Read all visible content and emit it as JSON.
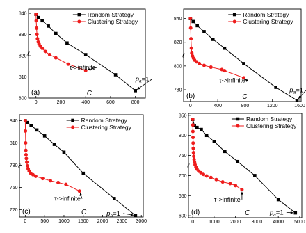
{
  "chart_data": [
    {
      "type": "line",
      "panel_label": "(a)",
      "xlabel": "C",
      "ylabel": "ℓ",
      "xlim": [
        -60,
        880
      ],
      "ylim": [
        800,
        842
      ],
      "xticks": [
        0,
        200,
        400,
        600,
        800
      ],
      "yticks": [
        800,
        810,
        820,
        830,
        840
      ],
      "series": [
        {
          "name": "Random Strategy",
          "color": "#000000",
          "marker": "square",
          "x": [
            0,
            20,
            50,
            100,
            160,
            250,
            400,
            640,
            800
          ],
          "y": [
            839.5,
            838,
            836.5,
            834,
            830.5,
            826,
            820.5,
            811,
            803.5
          ]
        },
        {
          "name": "Clustering Strategy",
          "color": "#ee1c1c",
          "marker": "circle",
          "x": [
            0,
            2,
            5,
            8,
            12,
            18,
            25,
            35,
            50,
            75,
            110,
            160,
            260,
            400
          ],
          "y": [
            839.5,
            836.5,
            833,
            830,
            828,
            826.5,
            825.5,
            824.5,
            823.5,
            822,
            820.5,
            819,
            816,
            813
          ]
        }
      ],
      "annotations": [
        {
          "text": "τ->infinite",
          "x": 270,
          "y": 813.5,
          "target_x": 400,
          "target_y": 813
        },
        {
          "text": "p",
          "sub": "a",
          "suffix": "=1",
          "x": 800,
          "y": 808,
          "target_x": 800,
          "target_y": 803.5
        }
      ]
    },
    {
      "type": "line",
      "panel_label": "(b)",
      "xlabel": "C",
      "ylabel": "ℓ",
      "xlim": [
        -100,
        1620
      ],
      "ylim": [
        770,
        848
      ],
      "xticks": [
        0,
        400,
        800,
        1200,
        1600
      ],
      "yticks": [
        780,
        800,
        820,
        840
      ],
      "series": [
        {
          "name": "Random Strategy",
          "color": "#000000",
          "marker": "square",
          "x": [
            0,
            40,
            100,
            200,
            330,
            500,
            780,
            1250,
            1560
          ],
          "y": [
            840,
            837.5,
            834,
            829,
            822.5,
            815,
            802,
            782,
            771
          ]
        },
        {
          "name": "Clustering Strategy",
          "color": "#ee1c1c",
          "marker": "circle",
          "x": [
            0,
            4,
            8,
            14,
            20,
            30,
            45,
            60,
            90,
            130,
            200,
            300,
            460,
            500,
            780
          ],
          "y": [
            840,
            832,
            823,
            815,
            811,
            808.5,
            806.5,
            805,
            803.5,
            802,
            800.5,
            799,
            797,
            796,
            790
          ]
        }
      ],
      "annotations": [
        {
          "text": "τ->infinite",
          "x": 420,
          "y": 786,
          "target_x": 780,
          "target_y": 790
        },
        {
          "text": "p",
          "sub": "a",
          "suffix": "=1",
          "x": 1450,
          "y": 778,
          "target_x": 1560,
          "target_y": 771
        }
      ]
    },
    {
      "type": "line",
      "panel_label": "(c)",
      "xlabel": "C",
      "ylabel": "ℓ",
      "xlim": [
        -150,
        3050
      ],
      "ylim": [
        710,
        848
      ],
      "xticks": [
        0,
        500,
        1000,
        1500,
        2000,
        2500,
        3000
      ],
      "yticks": [
        720,
        750,
        780,
        810,
        840
      ],
      "series": [
        {
          "name": "Random Strategy",
          "color": "#000000",
          "marker": "square",
          "x": [
            0,
            60,
            150,
            300,
            500,
            750,
            1000,
            1500,
            2300,
            2850
          ],
          "y": [
            840,
            837.5,
            833.5,
            827.5,
            819.5,
            808,
            797.5,
            769,
            735,
            712
          ]
        },
        {
          "name": "Clustering Strategy",
          "color": "#ee1c1c",
          "marker": "circle",
          "x": [
            0,
            5,
            10,
            15,
            20,
            28,
            40,
            55,
            75,
            100,
            140,
            200,
            270,
            450,
            650,
            850,
            1050,
            1400
          ],
          "y": [
            840,
            826,
            810,
            800,
            794,
            789,
            784,
            779,
            775,
            772,
            769,
            767,
            765,
            762,
            759,
            756.5,
            754,
            745
          ]
        }
      ],
      "annotations": [
        {
          "text": "τ->infinite",
          "x": 750,
          "y": 732,
          "target_x": 1400,
          "target_y": 745
        },
        {
          "text": "p",
          "sub": "a",
          "suffix": "=1",
          "x": 2100,
          "y": 712,
          "target_x": 2850,
          "target_y": 712
        }
      ]
    },
    {
      "type": "line",
      "panel_label": "(d)",
      "xlabel": "C",
      "ylabel": "ℓ",
      "xlim": [
        -200,
        5100
      ],
      "ylim": [
        595,
        855
      ],
      "xticks": [
        0,
        1000,
        2000,
        3000,
        4000,
        5000
      ],
      "yticks": [
        600,
        650,
        700,
        750,
        800,
        850
      ],
      "series": [
        {
          "name": "Random Strategy",
          "color": "#000000",
          "marker": "square",
          "x": [
            0,
            80,
            200,
            400,
            650,
            1000,
            1500,
            2100,
            2900,
            4000,
            4800
          ],
          "y": [
            840,
            825,
            820,
            815,
            800,
            785,
            760,
            735,
            700,
            640,
            607
          ]
        },
        {
          "name": "Clustering Strategy",
          "color": "#ee1c1c",
          "marker": "circle",
          "x": [
            0,
            4,
            8,
            12,
            18,
            25,
            35,
            48,
            65,
            85,
            110,
            150,
            200,
            280,
            380,
            500,
            650,
            850,
            1100,
            1400,
            1750,
            2000,
            2300
          ],
          "y": [
            840,
            826,
            810,
            795,
            781,
            768,
            757,
            748,
            740,
            733,
            727,
            721,
            716,
            711,
            707,
            703,
            699,
            695,
            690,
            684,
            680,
            675,
            665
          ]
        }
      ],
      "annotations": [
        {
          "text": "τ->infinite",
          "x": 1000,
          "y": 635,
          "target_x": 2300,
          "target_y": 665
        },
        {
          "text": "p",
          "sub": "a",
          "suffix": "=1",
          "x": 3600,
          "y": 603,
          "target_x": 4800,
          "target_y": 607
        }
      ]
    }
  ]
}
